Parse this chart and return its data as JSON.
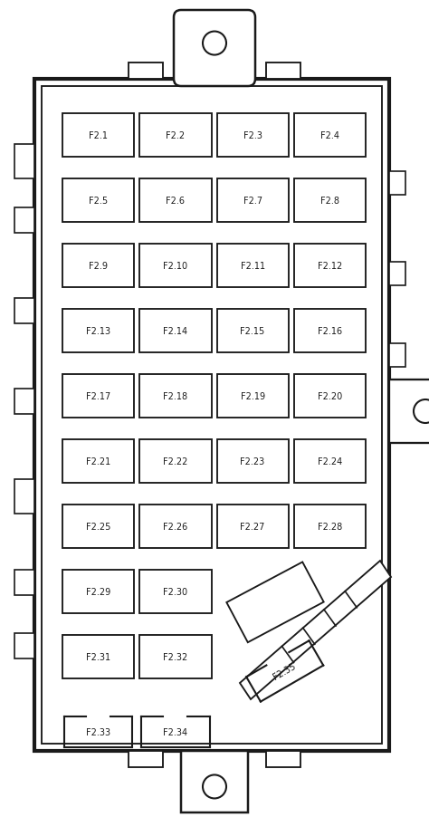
{
  "bg_color": "#ffffff",
  "line_color": "#1a1a1a",
  "box_bg": "#ffffff",
  "fig_width": 4.74,
  "fig_height": 9.03,
  "dpi": 100,
  "fuses_regular": [
    {
      "label": "F2.1",
      "col": 0,
      "row": 0
    },
    {
      "label": "F2.2",
      "col": 1,
      "row": 0
    },
    {
      "label": "F2.3",
      "col": 2,
      "row": 0
    },
    {
      "label": "F2.4",
      "col": 3,
      "row": 0
    },
    {
      "label": "F2.5",
      "col": 0,
      "row": 1
    },
    {
      "label": "F2.6",
      "col": 1,
      "row": 1
    },
    {
      "label": "F2.7",
      "col": 2,
      "row": 1
    },
    {
      "label": "F2.8",
      "col": 3,
      "row": 1
    },
    {
      "label": "F2.9",
      "col": 0,
      "row": 2
    },
    {
      "label": "F2.10",
      "col": 1,
      "row": 2
    },
    {
      "label": "F2.11",
      "col": 2,
      "row": 2
    },
    {
      "label": "F2.12",
      "col": 3,
      "row": 2
    },
    {
      "label": "F2.13",
      "col": 0,
      "row": 3
    },
    {
      "label": "F2.14",
      "col": 1,
      "row": 3
    },
    {
      "label": "F2.15",
      "col": 2,
      "row": 3
    },
    {
      "label": "F2.16",
      "col": 3,
      "row": 3
    },
    {
      "label": "F2.17",
      "col": 0,
      "row": 4
    },
    {
      "label": "F2.18",
      "col": 1,
      "row": 4
    },
    {
      "label": "F2.19",
      "col": 2,
      "row": 4
    },
    {
      "label": "F2.20",
      "col": 3,
      "row": 4
    },
    {
      "label": "F2.21",
      "col": 0,
      "row": 5
    },
    {
      "label": "F2.22",
      "col": 1,
      "row": 5
    },
    {
      "label": "F2.23",
      "col": 2,
      "row": 5
    },
    {
      "label": "F2.24",
      "col": 3,
      "row": 5
    },
    {
      "label": "F2.25",
      "col": 0,
      "row": 6
    },
    {
      "label": "F2.26",
      "col": 1,
      "row": 6
    },
    {
      "label": "F2.27",
      "col": 2,
      "row": 6
    },
    {
      "label": "F2.28",
      "col": 3,
      "row": 6
    },
    {
      "label": "F2.29",
      "col": 0,
      "row": 7
    },
    {
      "label": "F2.30",
      "col": 1,
      "row": 7
    },
    {
      "label": "F2.31",
      "col": 0,
      "row": 8
    },
    {
      "label": "F2.32",
      "col": 1,
      "row": 8
    }
  ],
  "fuse_font_size": 7.0,
  "lw": 1.5
}
